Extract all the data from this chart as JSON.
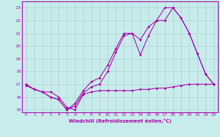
{
  "xlabel": "Windchill (Refroidissement éolien,°C)",
  "background_color": "#c8ecec",
  "grid_color": "#b0d8d8",
  "line_color": "#aa00aa",
  "xlim": [
    -0.5,
    23.5
  ],
  "ylim": [
    14.8,
    23.5
  ],
  "yticks": [
    15,
    16,
    17,
    18,
    19,
    20,
    21,
    22,
    23
  ],
  "xticks": [
    0,
    1,
    2,
    3,
    4,
    5,
    6,
    7,
    8,
    9,
    10,
    11,
    12,
    13,
    14,
    15,
    16,
    17,
    18,
    19,
    20,
    21,
    22,
    23
  ],
  "series1_x": [
    0,
    1,
    2,
    3,
    4,
    5,
    6,
    7,
    8,
    9,
    10,
    11,
    12,
    13,
    14,
    15,
    16,
    17,
    18,
    19,
    20,
    21,
    22,
    23
  ],
  "series1_y": [
    16.9,
    16.6,
    16.4,
    16.4,
    16.0,
    15.2,
    15.0,
    16.2,
    16.4,
    16.5,
    16.5,
    16.5,
    16.5,
    16.5,
    16.6,
    16.6,
    16.7,
    16.7,
    16.8,
    16.9,
    17.0,
    17.0,
    17.0,
    17.0
  ],
  "series2_x": [
    0,
    1,
    2,
    3,
    4,
    5,
    6,
    7,
    8,
    9,
    10,
    11,
    12,
    13,
    14,
    15,
    16,
    17,
    18,
    19,
    20,
    21,
    22,
    23
  ],
  "series2_y": [
    17.0,
    16.6,
    16.4,
    16.0,
    15.8,
    15.0,
    15.3,
    16.3,
    16.8,
    17.0,
    18.0,
    19.5,
    20.8,
    21.0,
    19.3,
    20.8,
    22.0,
    22.0,
    23.0,
    22.2,
    21.0,
    19.4,
    17.8,
    17.0
  ],
  "series3_x": [
    0,
    1,
    2,
    3,
    4,
    5,
    6,
    7,
    8,
    9,
    10,
    11,
    12,
    13,
    14,
    15,
    16,
    17,
    18,
    19,
    20,
    21,
    22,
    23
  ],
  "series3_y": [
    17.0,
    16.6,
    16.4,
    16.0,
    15.8,
    15.0,
    15.5,
    16.5,
    17.2,
    17.5,
    18.5,
    19.8,
    21.0,
    21.0,
    20.5,
    21.5,
    22.0,
    23.0,
    23.0,
    22.2,
    21.0,
    19.4,
    17.8,
    17.0
  ]
}
